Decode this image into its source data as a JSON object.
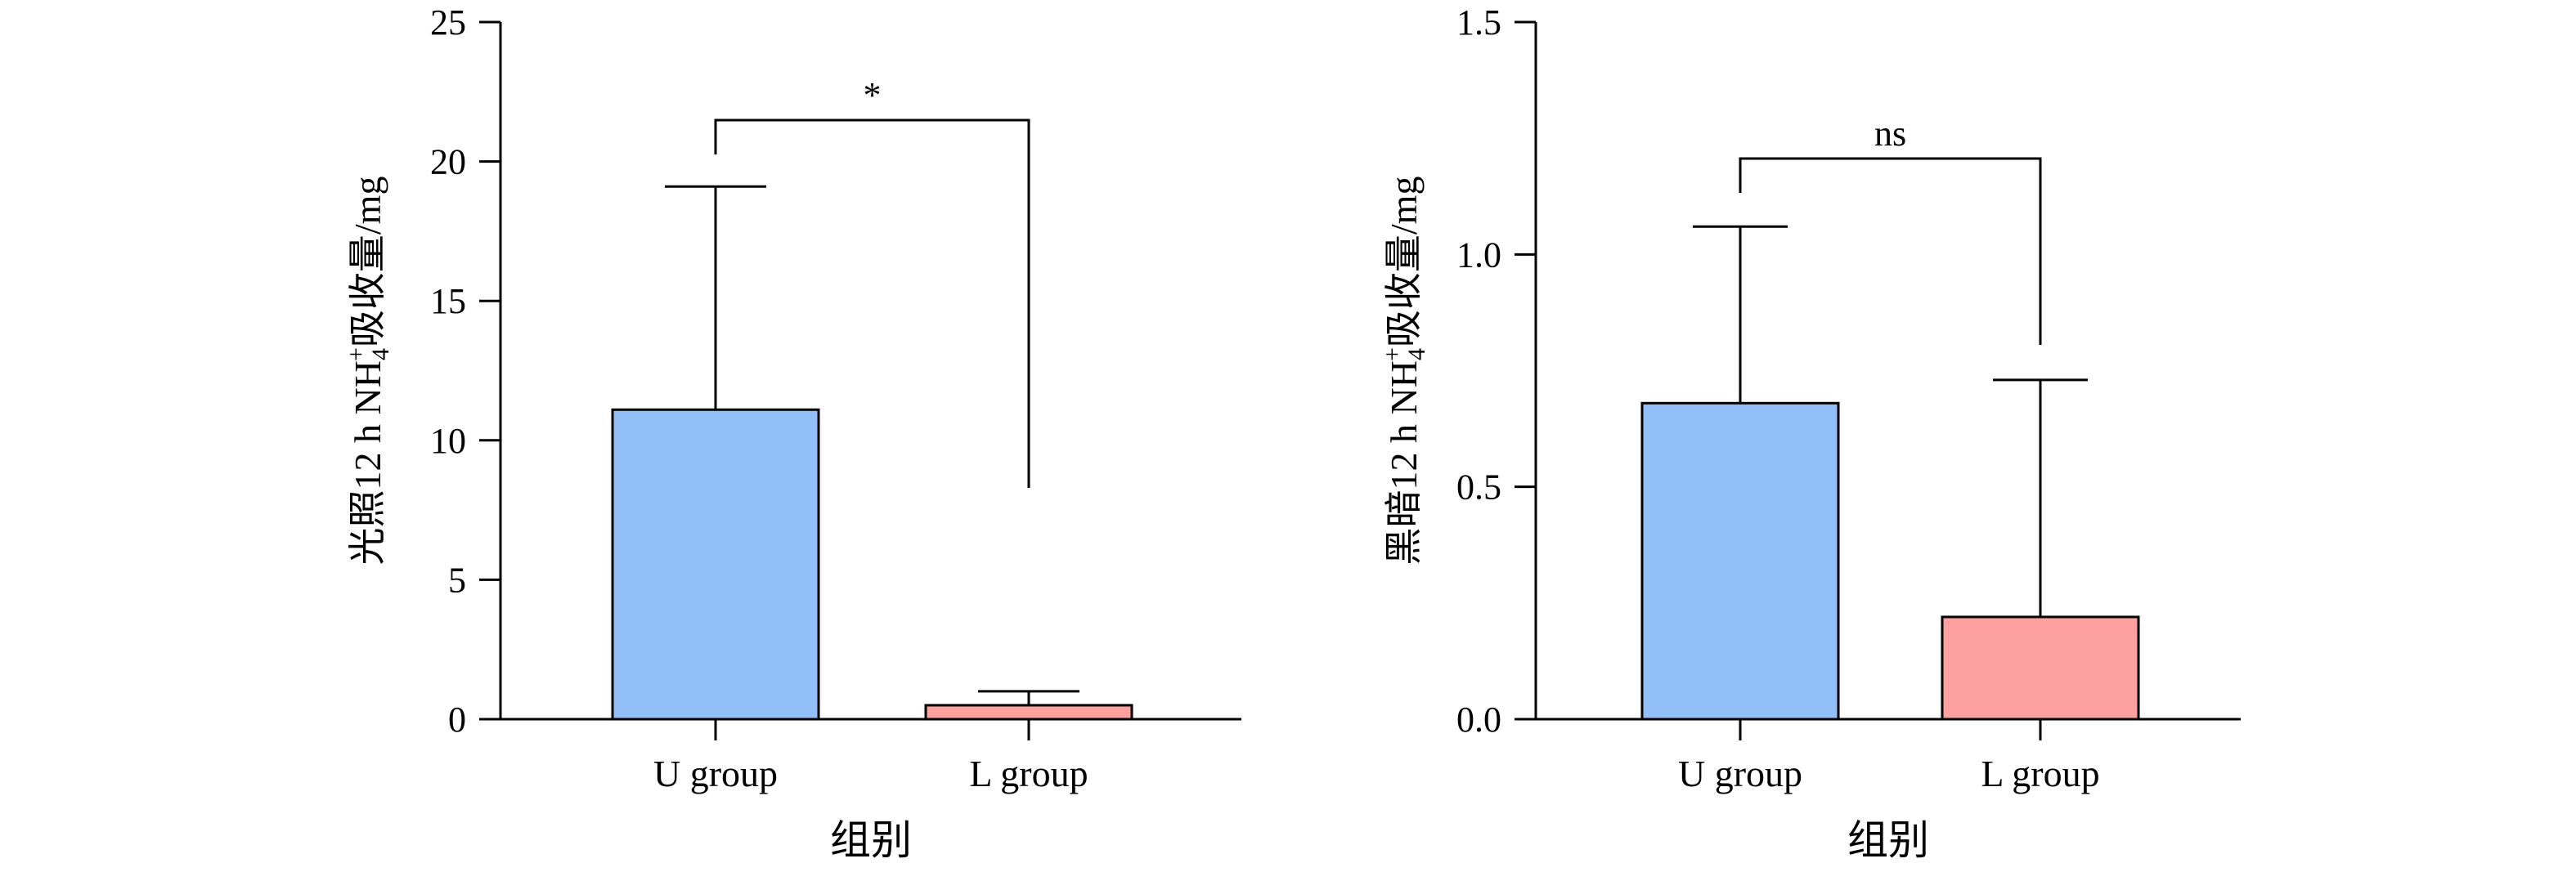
{
  "chart_data": [
    {
      "type": "bar",
      "categories": [
        "U group",
        "L group"
      ],
      "values": [
        11.1,
        0.5
      ],
      "errors": [
        8.0,
        0.5
      ],
      "colors": [
        "#93bff8",
        "#fca0a0"
      ],
      "ylabel": "光照12 h NH₄⁺吸收量/mg",
      "ylabel_parts": {
        "pre": "光照12 h NH",
        "sub": "4",
        "sup": "+",
        "post": "吸收量/mg"
      },
      "xlabel": "组别",
      "ylim": [
        0,
        25
      ],
      "yticks": [
        0,
        5,
        10,
        15,
        20,
        25
      ],
      "ytick_labels": [
        "0",
        "5",
        "10",
        "15",
        "20",
        "25"
      ],
      "significance": {
        "label": "*",
        "between": [
          0,
          1
        ]
      }
    },
    {
      "type": "bar",
      "categories": [
        "U group",
        "L group"
      ],
      "values": [
        0.68,
        0.22
      ],
      "errors": [
        0.38,
        0.51
      ],
      "colors": [
        "#93bff8",
        "#fca0a0"
      ],
      "ylabel": "黑暗12 h NH₄⁺吸收量/mg",
      "ylabel_parts": {
        "pre": "黑暗12 h NH",
        "sub": "4",
        "sup": "+",
        "post": "吸收量/mg"
      },
      "xlabel": "组别",
      "ylim": [
        0,
        1.5
      ],
      "yticks": [
        0,
        0.5,
        1.0,
        1.5
      ],
      "ytick_labels": [
        "0.0",
        "0.5",
        "1.0",
        "1.5"
      ],
      "significance": {
        "label": "ns",
        "between": [
          0,
          1
        ]
      }
    }
  ]
}
